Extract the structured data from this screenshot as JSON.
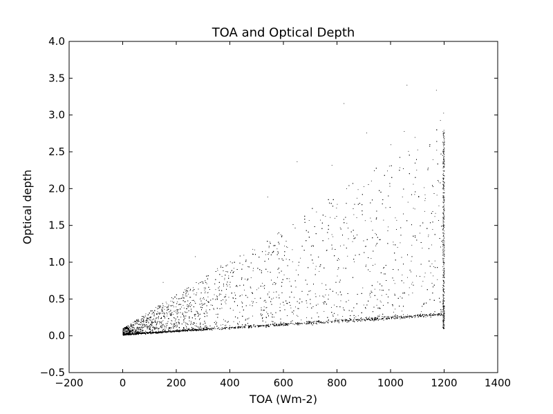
{
  "chart_data": {
    "type": "scatter",
    "title": "TOA and Optical Depth",
    "xlabel": "TOA (Wm-2)",
    "ylabel": "Optical depth",
    "xlim": [
      -200,
      1400
    ],
    "ylim": [
      -0.5,
      4.0
    ],
    "xticks": [
      -200,
      0,
      200,
      400,
      600,
      800,
      1000,
      1200,
      1400
    ],
    "xtick_labels": [
      "−200",
      "0",
      "200",
      "400",
      "600",
      "800",
      "1000",
      "1200",
      "1400"
    ],
    "yticks": [
      -0.5,
      0.0,
      0.5,
      1.0,
      1.5,
      2.0,
      2.5,
      3.0,
      3.5,
      4.0
    ],
    "ytick_labels": [
      "−0.5",
      "0.0",
      "0.5",
      "1.0",
      "1.5",
      "2.0",
      "2.5",
      "3.0",
      "3.5",
      "4.0"
    ],
    "grid": false,
    "point_color": "#000000",
    "x_range_of_points": [
      0,
      1200
    ],
    "notable_points": [
      {
        "x": 1060,
        "y": 3.41
      },
      {
        "x": 1170,
        "y": 3.34
      },
      {
        "x": 825,
        "y": 3.16
      },
      {
        "x": 1197,
        "y": 3.03
      },
      {
        "x": 1185,
        "y": 2.93
      },
      {
        "x": 910,
        "y": 2.76
      },
      {
        "x": 1050,
        "y": 2.78
      },
      {
        "x": 1090,
        "y": 2.7
      },
      {
        "x": 1000,
        "y": 2.6
      },
      {
        "x": 650,
        "y": 2.37
      },
      {
        "x": 780,
        "y": 2.32
      },
      {
        "x": 540,
        "y": 1.89
      },
      {
        "x": 270,
        "y": 1.08
      },
      {
        "x": 150,
        "y": 0.73
      }
    ],
    "trend": {
      "description_of_dense_band_lower_edge": [
        {
          "x": 0,
          "y": 0.0
        },
        {
          "x": 200,
          "y": 0.08
        },
        {
          "x": 400,
          "y": 0.14
        },
        {
          "x": 600,
          "y": 0.18
        },
        {
          "x": 800,
          "y": 0.22
        },
        {
          "x": 1000,
          "y": 0.26
        },
        {
          "x": 1200,
          "y": 0.3
        }
      ],
      "upper_envelope": [
        {
          "x": 0,
          "y": 0.1
        },
        {
          "x": 100,
          "y": 0.4
        },
        {
          "x": 200,
          "y": 0.8
        },
        {
          "x": 400,
          "y": 1.3
        },
        {
          "x": 600,
          "y": 1.7
        },
        {
          "x": 800,
          "y": 2.1
        },
        {
          "x": 1000,
          "y": 2.5
        },
        {
          "x": 1200,
          "y": 2.9
        }
      ]
    }
  }
}
